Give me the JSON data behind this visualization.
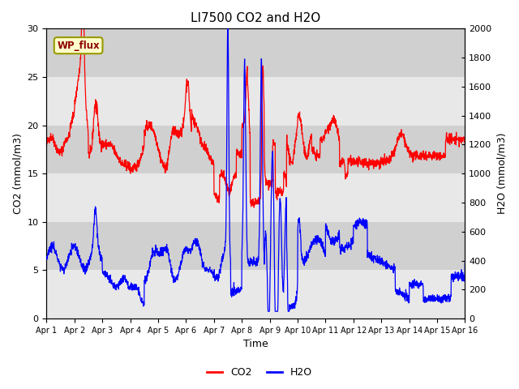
{
  "title": "LI7500 CO2 and H2O",
  "xlabel": "Time",
  "ylabel_left": "CO2 (mmol/m3)",
  "ylabel_right": "H2O (mmol/m3)",
  "annotation_text": "WP_flux",
  "xlim_days": [
    0,
    15
  ],
  "ylim_left": [
    0,
    30
  ],
  "ylim_right": [
    0,
    2000
  ],
  "yticks_left": [
    0,
    5,
    10,
    15,
    20,
    25,
    30
  ],
  "yticks_right": [
    0,
    200,
    400,
    600,
    800,
    1000,
    1200,
    1400,
    1600,
    1800,
    2000
  ],
  "xtick_labels": [
    "Apr 1",
    "Apr 2",
    "Apr 3",
    "Apr 4",
    "Apr 5",
    "Apr 6",
    "Apr 7",
    "Apr 8",
    "Apr 9",
    "Apr 10",
    "Apr 11",
    "Apr 12",
    "Apr 13",
    "Apr 14",
    "Apr 15",
    "Apr 16"
  ],
  "co2_color": "#ff0000",
  "h2o_color": "#0000ff",
  "band_light": "#e8e8e8",
  "band_dark": "#d0d0d0",
  "legend_co2": "CO2",
  "legend_h2o": "H2O",
  "title_fontsize": 11,
  "axis_label_fontsize": 9,
  "tick_fontsize": 8,
  "legend_fontsize": 9
}
